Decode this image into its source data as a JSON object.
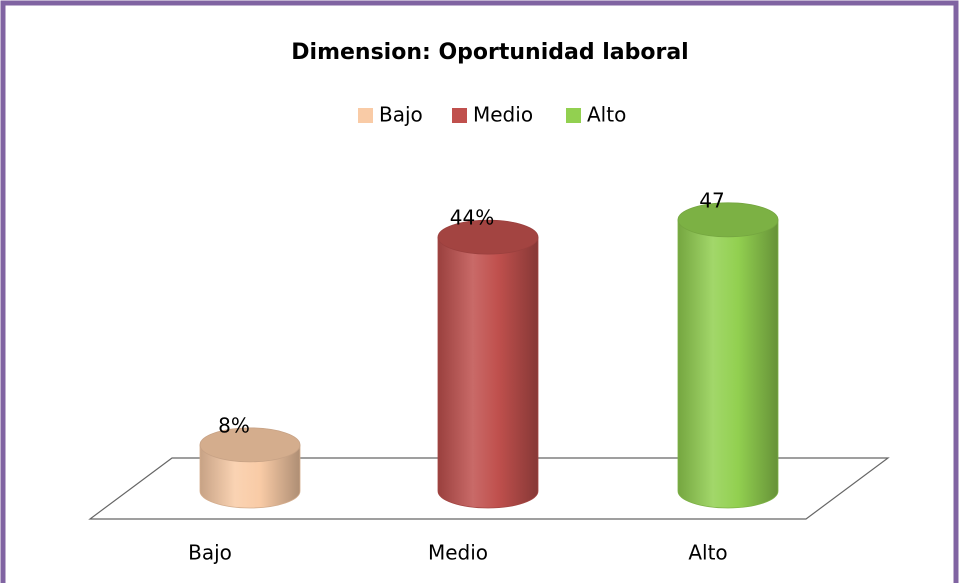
{
  "chart_data": {
    "type": "cylinder",
    "title": "Dimension: Oportunidad laboral",
    "categories": [
      "Bajo",
      "Medio",
      "Alto"
    ],
    "values": [
      8,
      44,
      47
    ],
    "value_labels": [
      "8%",
      "44%",
      "47"
    ],
    "colors": [
      "#f9cba6",
      "#c0504d",
      "#92d050"
    ],
    "legend": "top"
  }
}
